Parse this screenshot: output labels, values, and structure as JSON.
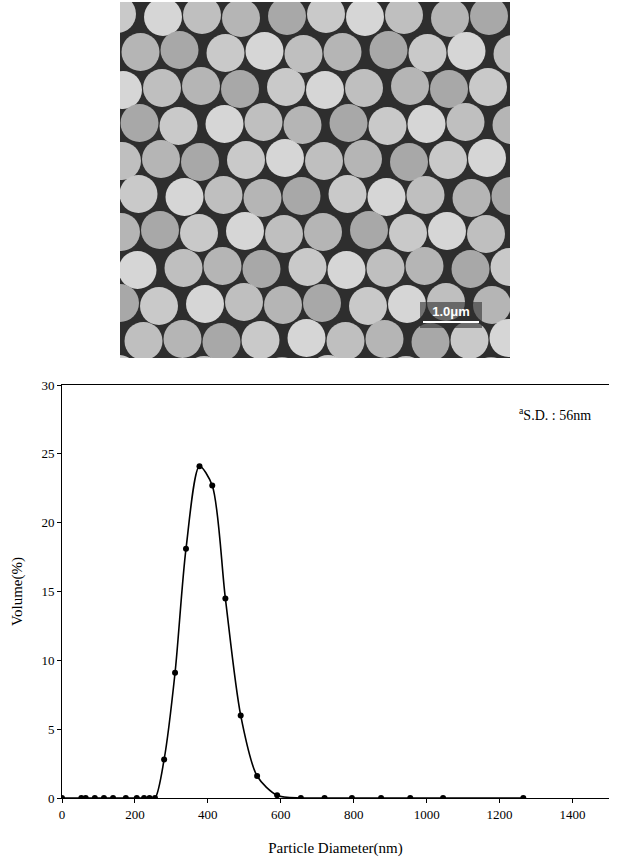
{
  "chart_data": {
    "type": "line",
    "marker": "circle",
    "color": "#000000",
    "x_label": "Particle Diameter(nm)",
    "y_label": "Volume(%)",
    "annotation": "S.D. : 56nm",
    "annotation_mark": "a",
    "x": [
      0,
      53,
      65,
      90,
      115,
      140,
      175,
      205,
      225,
      240,
      255,
      280,
      310,
      340,
      377,
      412,
      448,
      490,
      535,
      590,
      655,
      720,
      795,
      875,
      955,
      1045,
      1265
    ],
    "values": [
      0,
      0,
      0,
      0,
      0,
      0,
      0,
      0,
      0,
      0,
      0,
      2.8,
      9.1,
      18.1,
      24.1,
      22.7,
      14.5,
      6.0,
      1.6,
      0.2,
      0,
      0,
      0,
      0,
      0,
      0,
      0
    ],
    "xlim": [
      0,
      1500
    ],
    "xticks": [
      0,
      200,
      400,
      600,
      800,
      1000,
      1200,
      1400
    ],
    "ylim": [
      0,
      30
    ],
    "yticks": [
      0,
      5,
      10,
      15,
      20,
      25,
      30
    ],
    "grid": false
  },
  "micrograph": {
    "scale_bar_label": "1.0μm"
  }
}
